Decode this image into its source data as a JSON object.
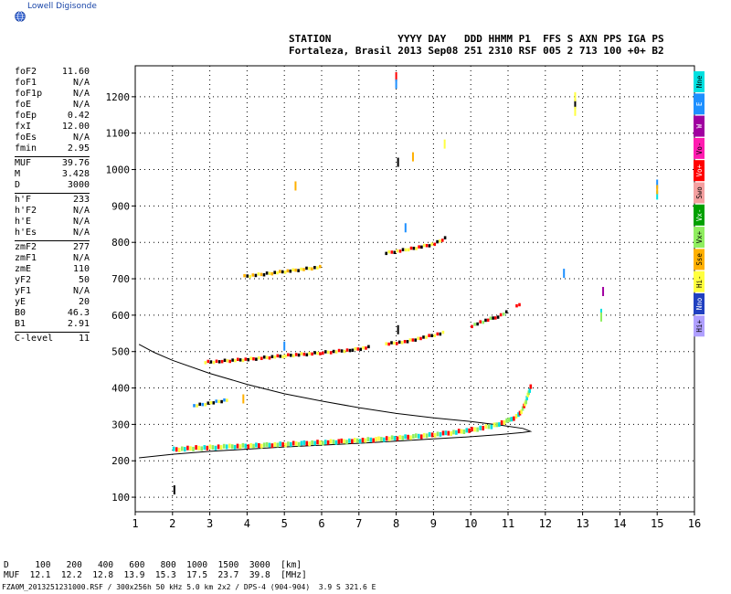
{
  "app": {
    "title": "Lowell Digisonde",
    "logo_icon": "globe-icon"
  },
  "header": {
    "line1": "STATION           YYYY DAY   DDD HHMM P1  FFS S AXN PPS IGA PS",
    "line2": "Fortaleza, Brasil 2013 Sep08 251 2310 RSF 005 2 713 100 +0+ B2"
  },
  "params": {
    "group1": [
      {
        "label": "foF2",
        "value": "11.60"
      },
      {
        "label": "foF1",
        "value": "N/A"
      },
      {
        "label": "foF1p",
        "value": "N/A"
      },
      {
        "label": "foE",
        "value": "N/A"
      },
      {
        "label": "foEp",
        "value": "0.42"
      },
      {
        "label": "fxI",
        "value": "12.00"
      },
      {
        "label": "foEs",
        "value": "N/A"
      },
      {
        "label": "fmin",
        "value": "2.95"
      }
    ],
    "group2": [
      {
        "label": "MUF",
        "value": "39.76"
      },
      {
        "label": "M",
        "value": "3.428"
      },
      {
        "label": "D",
        "value": "3000"
      }
    ],
    "group3": [
      {
        "label": "h'F",
        "value": "233"
      },
      {
        "label": "h'F2",
        "value": "N/A"
      },
      {
        "label": "h'E",
        "value": "N/A"
      },
      {
        "label": "h'Es",
        "value": "N/A"
      }
    ],
    "group4": [
      {
        "label": "zmF2",
        "value": "277"
      },
      {
        "label": "zmF1",
        "value": "N/A"
      },
      {
        "label": "zmE",
        "value": "110"
      },
      {
        "label": "yF2",
        "value": "50"
      },
      {
        "label": "yF1",
        "value": "N/A"
      },
      {
        "label": "yE",
        "value": "20"
      },
      {
        "label": "B0",
        "value": "46.3"
      },
      {
        "label": "B1",
        "value": "2.91"
      }
    ],
    "group5": [
      {
        "label": "C-level",
        "value": "11"
      }
    ]
  },
  "legend": [
    {
      "label": "Nne",
      "color": "#00e0e0"
    },
    {
      "label": "E",
      "color": "#1e90ff"
    },
    {
      "label": "W",
      "color": "#a000a0"
    },
    {
      "label": "Vo-",
      "color": "#ff1cb0"
    },
    {
      "label": "Vo+",
      "color": "#ff0000"
    },
    {
      "label": "Swo",
      "color": "#f4a0a0"
    },
    {
      "label": "Vx-",
      "color": "#00a000"
    },
    {
      "label": "Vx+",
      "color": "#90ee60"
    },
    {
      "label": "Sse",
      "color": "#ffb000"
    },
    {
      "label": "Hi-",
      "color": "#ffff40"
    },
    {
      "label": "Nno",
      "color": "#2040c0"
    },
    {
      "label": "Hi+",
      "color": "#b0a0ff"
    }
  ],
  "footer": {
    "d_row": "D     100   200   400   600   800  1000  1500  3000  [km]",
    "muf_row": "MUF  12.1  12.2  12.8  13.9  15.3  17.5  23.7  39.8  [MHz]",
    "note": "FZA0M_2013251231000.RSF / 300x256h 50 kHz 5.0 km 2x2 / DPS-4 (904-904)  3.9 S 321.6 E"
  },
  "chart_data": {
    "type": "scatter",
    "title": "",
    "xlabel": "",
    "ylabel": "",
    "xlim": [
      1,
      16
    ],
    "ylim": [
      60,
      1285
    ],
    "x_ticks": [
      1,
      2,
      3,
      4,
      5,
      6,
      7,
      8,
      9,
      10,
      11,
      12,
      13,
      14,
      15,
      16
    ],
    "y_ticks": [
      100,
      200,
      300,
      400,
      500,
      600,
      700,
      800,
      900,
      1000,
      1100,
      1200
    ],
    "grid": true,
    "profile_curve": [
      [
        1.1,
        208
      ],
      [
        2,
        218
      ],
      [
        3,
        226
      ],
      [
        4,
        232
      ],
      [
        5,
        238
      ],
      [
        6,
        243
      ],
      [
        7,
        248
      ],
      [
        8,
        254
      ],
      [
        9,
        260
      ],
      [
        10,
        266
      ],
      [
        10.8,
        272
      ],
      [
        11.4,
        278
      ],
      [
        11.6,
        281
      ],
      [
        11.4,
        289
      ],
      [
        10.8,
        298
      ],
      [
        10,
        308
      ],
      [
        9,
        318
      ],
      [
        8,
        330
      ],
      [
        7,
        346
      ],
      [
        6,
        364
      ],
      [
        5,
        384
      ],
      [
        4,
        410
      ],
      [
        3,
        440
      ],
      [
        2,
        476
      ],
      [
        1.5,
        498
      ],
      [
        1.1,
        520
      ]
    ],
    "traces": [
      {
        "x": [
          2.0,
          2.6,
          3.5,
          4.5,
          5.5,
          6.5,
          7.5,
          8.5,
          9.3,
          10.0,
          10.6,
          11.0,
          11.25,
          11.4,
          11.5,
          11.6
        ],
        "y": [
          232,
          236,
          240,
          244,
          249,
          254,
          260,
          268,
          276,
          286,
          298,
          312,
          326,
          350,
          380,
          412
        ],
        "colors": [
          "#00e0e0",
          "#ff0000",
          "#ffff40",
          "#90ee60"
        ]
      },
      {
        "x": [
          2.85,
          3.3,
          4.0,
          5.0,
          6.0,
          6.8,
          7.3
        ],
        "y": [
          470,
          473,
          478,
          488,
          496,
          504,
          512
        ],
        "colors": [
          "#000000",
          "#ffff40",
          "#ff0000"
        ]
      },
      {
        "x": [
          7.7,
          8.2,
          8.7,
          9.3
        ],
        "y": [
          520,
          526,
          538,
          552
        ],
        "colors": [
          "#ff0000",
          "#000000",
          "#ffff40"
        ]
      },
      {
        "x": [
          10.0,
          10.3,
          10.7,
          11.0
        ],
        "y": [
          570,
          582,
          596,
          610
        ],
        "colors": [
          "#ff0000",
          "#90ee60",
          "#000000"
        ]
      },
      {
        "x": [
          11.2,
          11.35
        ],
        "y": [
          625,
          635
        ],
        "colors": [
          "#ff0000"
        ]
      },
      {
        "x": [
          3.9,
          4.5,
          5.2,
          6.0
        ],
        "y": [
          706,
          713,
          722,
          732
        ],
        "colors": [
          "#000000",
          "#ffff40",
          "#ffb000"
        ]
      },
      {
        "x": [
          7.7,
          8.3,
          9.0,
          9.35
        ],
        "y": [
          770,
          780,
          795,
          815
        ],
        "colors": [
          "#000000",
          "#ffff40",
          "#ff0000"
        ]
      },
      {
        "x": [
          2.55,
          3.0,
          3.5
        ],
        "y": [
          350,
          358,
          368
        ],
        "colors": [
          "#000000",
          "#1e90ff",
          "#ffff40"
        ]
      }
    ],
    "scatter_points": [
      {
        "x": 2.05,
        "y": 120,
        "color": "#000000"
      },
      {
        "x": 8.0,
        "y": 1255,
        "color": "#ff0000"
      },
      {
        "x": 8.0,
        "y": 1235,
        "color": "#1e90ff"
      },
      {
        "x": 8.05,
        "y": 1020,
        "color": "#000000"
      },
      {
        "x": 8.45,
        "y": 1035,
        "color": "#ffb000"
      },
      {
        "x": 9.3,
        "y": 1070,
        "color": "#ffff40"
      },
      {
        "x": 5.3,
        "y": 955,
        "color": "#ffb000"
      },
      {
        "x": 8.25,
        "y": 840,
        "color": "#1e90ff"
      },
      {
        "x": 12.8,
        "y": 1180,
        "color": "#000000"
      },
      {
        "x": 12.8,
        "y": 1200,
        "color": "#ffff40"
      },
      {
        "x": 12.8,
        "y": 1160,
        "color": "#ffff40"
      },
      {
        "x": 15.0,
        "y": 930,
        "color": "#00e0e0"
      },
      {
        "x": 15.0,
        "y": 960,
        "color": "#1e90ff"
      },
      {
        "x": 15.0,
        "y": 945,
        "color": "#ffb000"
      },
      {
        "x": 13.55,
        "y": 665,
        "color": "#a000a0"
      },
      {
        "x": 13.5,
        "y": 605,
        "color": "#00e0e0"
      },
      {
        "x": 13.5,
        "y": 595,
        "color": "#90ee60"
      },
      {
        "x": 12.5,
        "y": 715,
        "color": "#1e90ff"
      },
      {
        "x": 3.9,
        "y": 370,
        "color": "#ffb000"
      },
      {
        "x": 8.05,
        "y": 560,
        "color": "#000000"
      },
      {
        "x": 5.0,
        "y": 515,
        "color": "#1e90ff"
      }
    ]
  }
}
